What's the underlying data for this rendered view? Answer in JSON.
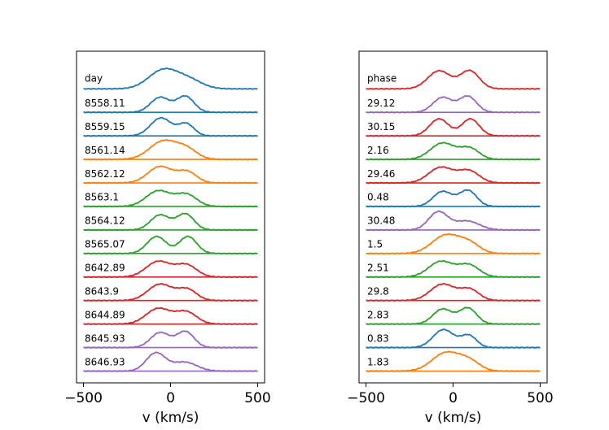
{
  "colors": {
    "blue": "#1f77b4",
    "orange": "#ff7f0e",
    "green": "#2ca02c",
    "red": "#d62728",
    "purple": "#9467bd"
  },
  "chart_data": [
    {
      "type": "line",
      "description": "Stacked, offset line profiles of intensity vs velocity",
      "xlabel": "v (km/s)",
      "ylabel": "",
      "xlim": [
        -540,
        540
      ],
      "xticks": [
        -500,
        0,
        500
      ],
      "xtick_labels": [
        "−500",
        "0",
        "500"
      ],
      "legend_title": "day",
      "profile_line_scale": 0.85,
      "series": [
        {
          "label": "",
          "color": "blue",
          "offset": 12.0,
          "profile": "mean",
          "baseline": false,
          "amp": 1.0
        },
        {
          "label": "8558.11",
          "color": "blue",
          "offset": 11.0,
          "profile": "B",
          "baseline": true,
          "amp": 1.0
        },
        {
          "label": "8559.15",
          "color": "blue",
          "offset": 10.0,
          "profile": "C",
          "baseline": true,
          "amp": 1.0
        },
        {
          "label": "8561.14",
          "color": "orange",
          "offset": 9.0,
          "profile": "A",
          "baseline": true,
          "amp": 1.0
        },
        {
          "label": "8562.12",
          "color": "orange",
          "offset": 8.0,
          "profile": "D",
          "baseline": true,
          "amp": 1.0
        },
        {
          "label": "8563.1",
          "color": "green",
          "offset": 7.0,
          "profile": "E",
          "baseline": true,
          "amp": 1.0
        },
        {
          "label": "8564.12",
          "color": "green",
          "offset": 6.0,
          "profile": "B",
          "baseline": true,
          "amp": 1.0
        },
        {
          "label": "8565.07",
          "color": "green",
          "offset": 5.0,
          "profile": "F",
          "baseline": true,
          "amp": 1.0
        },
        {
          "label": "8642.89",
          "color": "red",
          "offset": 4.0,
          "profile": "E",
          "baseline": true,
          "amp": 1.0
        },
        {
          "label": "8643.9",
          "color": "red",
          "offset": 3.0,
          "profile": "D",
          "baseline": true,
          "amp": 1.0
        },
        {
          "label": "8644.89",
          "color": "red",
          "offset": 2.0,
          "profile": "E",
          "baseline": true,
          "amp": 1.0
        },
        {
          "label": "8645.93",
          "color": "purple",
          "offset": 1.0,
          "profile": "B",
          "baseline": true,
          "amp": 1.0
        },
        {
          "label": "8646.93",
          "color": "purple",
          "offset": 0.0,
          "profile": "G",
          "baseline": true,
          "amp": 1.0
        }
      ],
      "ylim": [
        -0.5,
        13.6
      ]
    },
    {
      "type": "line",
      "description": "Stacked, offset line profiles of intensity vs velocity",
      "xlabel": "v (km/s)",
      "ylabel": "",
      "xlim": [
        -540,
        540
      ],
      "xticks": [
        -500,
        0,
        500
      ],
      "xtick_labels": [
        "−500",
        "0",
        "500"
      ],
      "legend_title": "phase",
      "profile_line_scale": 0.85,
      "series": [
        {
          "label": "",
          "color": "red",
          "offset": 12.0,
          "profile": "meanB",
          "baseline": false,
          "amp": 1.0
        },
        {
          "label": "29.12",
          "color": "purple",
          "offset": 11.0,
          "profile": "B",
          "baseline": true,
          "amp": 1.0
        },
        {
          "label": "30.15",
          "color": "red",
          "offset": 10.0,
          "profile": "F",
          "baseline": true,
          "amp": 1.0
        },
        {
          "label": "2.16",
          "color": "green",
          "offset": 9.0,
          "profile": "D",
          "baseline": true,
          "amp": 1.0
        },
        {
          "label": "29.46",
          "color": "red",
          "offset": 8.0,
          "profile": "E",
          "baseline": true,
          "amp": 1.0
        },
        {
          "label": "0.48",
          "color": "blue",
          "offset": 7.0,
          "profile": "B",
          "baseline": true,
          "amp": 1.0
        },
        {
          "label": "30.48",
          "color": "purple",
          "offset": 6.0,
          "profile": "G",
          "baseline": true,
          "amp": 1.0
        },
        {
          "label": "1.5",
          "color": "orange",
          "offset": 5.0,
          "profile": "A",
          "baseline": true,
          "amp": 1.0
        },
        {
          "label": "2.51",
          "color": "green",
          "offset": 4.0,
          "profile": "E",
          "baseline": true,
          "amp": 1.0
        },
        {
          "label": "29.8",
          "color": "red",
          "offset": 3.0,
          "profile": "D",
          "baseline": true,
          "amp": 1.0
        },
        {
          "label": "2.83",
          "color": "green",
          "offset": 2.0,
          "profile": "B",
          "baseline": true,
          "amp": 1.0
        },
        {
          "label": "0.83",
          "color": "blue",
          "offset": 1.0,
          "profile": "C",
          "baseline": true,
          "amp": 1.0
        },
        {
          "label": "1.83",
          "color": "orange",
          "offset": 0.0,
          "profile": "A",
          "baseline": true,
          "amp": 1.0
        }
      ],
      "ylim": [
        -0.5,
        13.6
      ]
    }
  ]
}
